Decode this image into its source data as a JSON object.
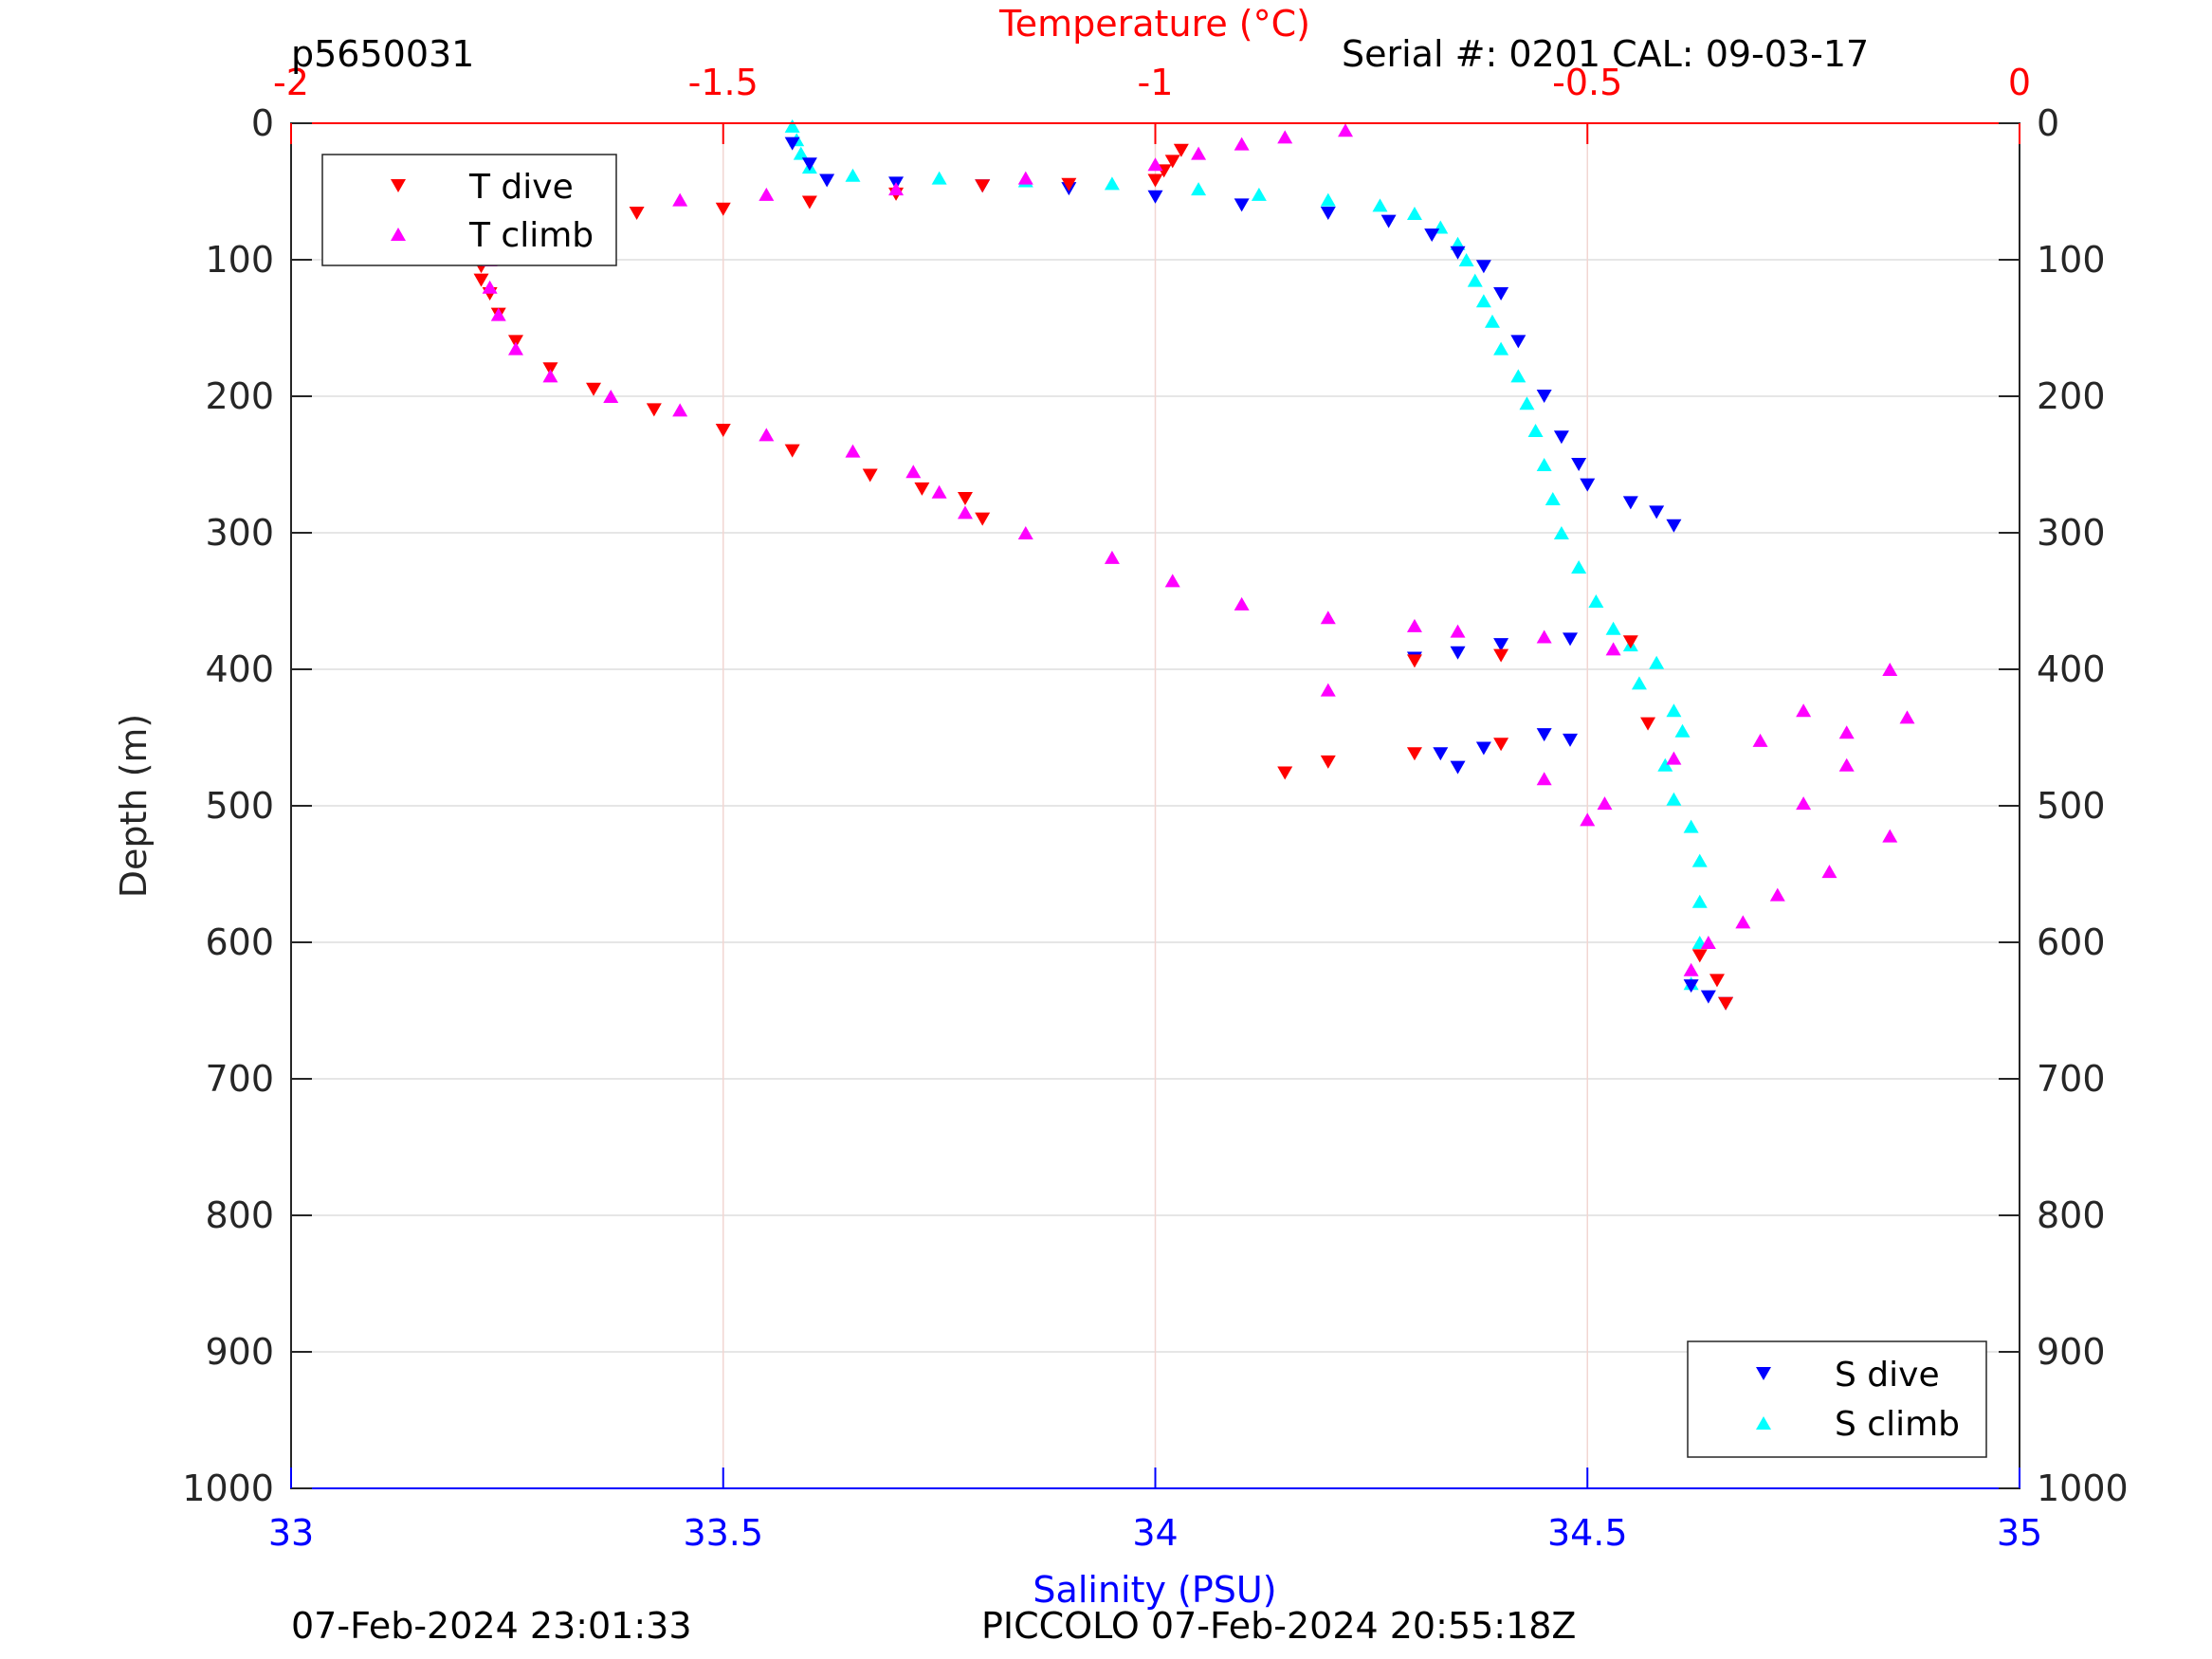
{
  "header": {
    "top_left": "p5650031",
    "top_right": "Serial #: 0201  CAL: 09-03-17"
  },
  "footer": {
    "left": "07-Feb-2024 23:01:33",
    "center": "PICCOLO 07-Feb-2024 20:55:18Z"
  },
  "colors": {
    "t_dive": "#ff0000",
    "t_climb": "#ff00ff",
    "s_dive": "#0000ff",
    "s_climb": "#00ffff",
    "temp_axis": "#ff0000",
    "sal_axis": "#0000ff"
  },
  "legends": {
    "temperature": {
      "placement": "top-left",
      "entries": [
        "T dive",
        "T climb"
      ]
    },
    "salinity": {
      "placement": "bottom-right",
      "entries": [
        "S dive",
        "S climb"
      ]
    }
  },
  "chart_data": {
    "type": "scatter",
    "grid": true,
    "y_axis": {
      "label": "Depth (m)",
      "range": [
        0,
        1000
      ],
      "reversed": true,
      "ticks": [
        0,
        100,
        200,
        300,
        400,
        500,
        600,
        700,
        800,
        900,
        1000
      ],
      "tick_labels": [
        "0",
        "100",
        "200",
        "300",
        "400",
        "500",
        "600",
        "700",
        "800",
        "900",
        "1000"
      ]
    },
    "x_top": {
      "label": "Temperature (°C)",
      "range": [
        -2,
        0
      ],
      "ticks": [
        -2,
        -1.5,
        -1,
        -0.5,
        0
      ],
      "tick_labels": [
        "-2",
        "-1.5",
        "-1",
        "-0.5",
        "0"
      ]
    },
    "x_bottom": {
      "label": "Salinity (PSU)",
      "range": [
        33,
        35
      ],
      "ticks": [
        33,
        33.5,
        34,
        34.5,
        35
      ],
      "tick_labels": [
        "33",
        "33.5",
        "34",
        "34.5",
        "35"
      ]
    },
    "series": [
      {
        "name": "T dive",
        "axis": "temperature",
        "marker": "triangle-down",
        "points": [
          [
            -0.97,
            20
          ],
          [
            -0.98,
            28
          ],
          [
            -0.99,
            35
          ],
          [
            -1.0,
            42
          ],
          [
            -1.1,
            45
          ],
          [
            -1.2,
            46
          ],
          [
            -1.3,
            52
          ],
          [
            -1.4,
            58
          ],
          [
            -1.5,
            63
          ],
          [
            -1.6,
            66
          ],
          [
            -1.7,
            70
          ],
          [
            -1.73,
            78
          ],
          [
            -1.75,
            85
          ],
          [
            -1.77,
            95
          ],
          [
            -1.78,
            105
          ],
          [
            -1.78,
            115
          ],
          [
            -1.77,
            125
          ],
          [
            -1.76,
            140
          ],
          [
            -1.74,
            160
          ],
          [
            -1.7,
            180
          ],
          [
            -1.65,
            195
          ],
          [
            -1.58,
            210
          ],
          [
            -1.5,
            225
          ],
          [
            -1.42,
            240
          ],
          [
            -1.33,
            258
          ],
          [
            -1.27,
            268
          ],
          [
            -1.22,
            275
          ],
          [
            -1.2,
            290
          ],
          [
            -0.6,
            390
          ],
          [
            -0.7,
            394
          ],
          [
            -0.45,
            380
          ],
          [
            -0.43,
            440
          ],
          [
            -0.6,
            455
          ],
          [
            -0.7,
            462
          ],
          [
            -0.8,
            468
          ],
          [
            -0.85,
            476
          ],
          [
            -0.37,
            610
          ],
          [
            -0.35,
            628
          ],
          [
            -0.34,
            645
          ]
        ]
      },
      {
        "name": "T climb",
        "axis": "temperature",
        "marker": "triangle-up",
        "points": [
          [
            -0.78,
            5
          ],
          [
            -0.85,
            10
          ],
          [
            -0.9,
            15
          ],
          [
            -0.95,
            22
          ],
          [
            -1.0,
            30
          ],
          [
            -1.15,
            40
          ],
          [
            -1.3,
            48
          ],
          [
            -1.45,
            52
          ],
          [
            -1.55,
            56
          ],
          [
            -1.65,
            62
          ],
          [
            -1.72,
            70
          ],
          [
            -1.76,
            85
          ],
          [
            -1.77,
            100
          ],
          [
            -1.77,
            120
          ],
          [
            -1.76,
            140
          ],
          [
            -1.74,
            165
          ],
          [
            -1.7,
            185
          ],
          [
            -1.63,
            200
          ],
          [
            -1.55,
            210
          ],
          [
            -1.45,
            228
          ],
          [
            -1.35,
            240
          ],
          [
            -1.28,
            255
          ],
          [
            -1.25,
            270
          ],
          [
            -1.22,
            285
          ],
          [
            -1.15,
            300
          ],
          [
            -1.05,
            318
          ],
          [
            -0.98,
            335
          ],
          [
            -0.9,
            352
          ],
          [
            -0.8,
            362
          ],
          [
            -0.7,
            368
          ],
          [
            -0.65,
            372
          ],
          [
            -0.55,
            376
          ],
          [
            -0.47,
            385
          ],
          [
            -0.8,
            415
          ],
          [
            -0.5,
            510
          ],
          [
            -0.55,
            480
          ],
          [
            -0.48,
            498
          ],
          [
            -0.4,
            465
          ],
          [
            -0.3,
            452
          ],
          [
            -0.2,
            446
          ],
          [
            -0.25,
            430
          ],
          [
            -0.15,
            400
          ],
          [
            -0.13,
            435
          ],
          [
            -0.2,
            470
          ],
          [
            -0.25,
            498
          ],
          [
            -0.15,
            522
          ],
          [
            -0.22,
            548
          ],
          [
            -0.28,
            565
          ],
          [
            -0.32,
            585
          ],
          [
            -0.36,
            600
          ],
          [
            -0.38,
            620
          ]
        ]
      },
      {
        "name": "S dive",
        "axis": "salinity",
        "marker": "triangle-down",
        "points": [
          [
            33.58,
            15
          ],
          [
            33.6,
            30
          ],
          [
            33.62,
            42
          ],
          [
            33.7,
            44
          ],
          [
            33.8,
            46
          ],
          [
            33.9,
            48
          ],
          [
            34.0,
            54
          ],
          [
            34.1,
            60
          ],
          [
            34.2,
            66
          ],
          [
            34.27,
            72
          ],
          [
            34.32,
            82
          ],
          [
            34.35,
            95
          ],
          [
            34.38,
            105
          ],
          [
            34.4,
            125
          ],
          [
            34.42,
            160
          ],
          [
            34.45,
            200
          ],
          [
            34.47,
            230
          ],
          [
            34.49,
            250
          ],
          [
            34.5,
            265
          ],
          [
            34.55,
            278
          ],
          [
            34.58,
            285
          ],
          [
            34.6,
            295
          ],
          [
            34.48,
            378
          ],
          [
            34.4,
            382
          ],
          [
            34.35,
            388
          ],
          [
            34.3,
            392
          ],
          [
            34.45,
            448
          ],
          [
            34.48,
            452
          ],
          [
            34.38,
            458
          ],
          [
            34.33,
            462
          ],
          [
            34.35,
            472
          ],
          [
            34.62,
            632
          ],
          [
            34.64,
            640
          ],
          [
            34.66,
            645
          ]
        ]
      },
      {
        "name": "S climb",
        "axis": "salinity",
        "marker": "triangle-up",
        "points": [
          [
            33.58,
            2
          ],
          [
            33.585,
            12
          ],
          [
            33.59,
            22
          ],
          [
            33.6,
            32
          ],
          [
            33.65,
            38
          ],
          [
            33.75,
            40
          ],
          [
            33.85,
            42
          ],
          [
            33.95,
            44
          ],
          [
            34.05,
            48
          ],
          [
            34.12,
            52
          ],
          [
            34.2,
            56
          ],
          [
            34.26,
            60
          ],
          [
            34.3,
            66
          ],
          [
            34.33,
            76
          ],
          [
            34.35,
            88
          ],
          [
            34.36,
            100
          ],
          [
            34.37,
            115
          ],
          [
            34.38,
            130
          ],
          [
            34.39,
            145
          ],
          [
            34.4,
            165
          ],
          [
            34.42,
            185
          ],
          [
            34.43,
            205
          ],
          [
            34.44,
            225
          ],
          [
            34.45,
            250
          ],
          [
            34.46,
            275
          ],
          [
            34.47,
            300
          ],
          [
            34.49,
            325
          ],
          [
            34.51,
            350
          ],
          [
            34.53,
            370
          ],
          [
            34.55,
            382
          ],
          [
            34.58,
            395
          ],
          [
            34.56,
            410
          ],
          [
            34.6,
            430
          ],
          [
            34.61,
            445
          ],
          [
            34.59,
            470
          ],
          [
            34.6,
            495
          ],
          [
            34.62,
            515
          ],
          [
            34.63,
            540
          ],
          [
            34.63,
            570
          ],
          [
            34.63,
            600
          ],
          [
            34.62,
            630
          ]
        ]
      }
    ]
  }
}
